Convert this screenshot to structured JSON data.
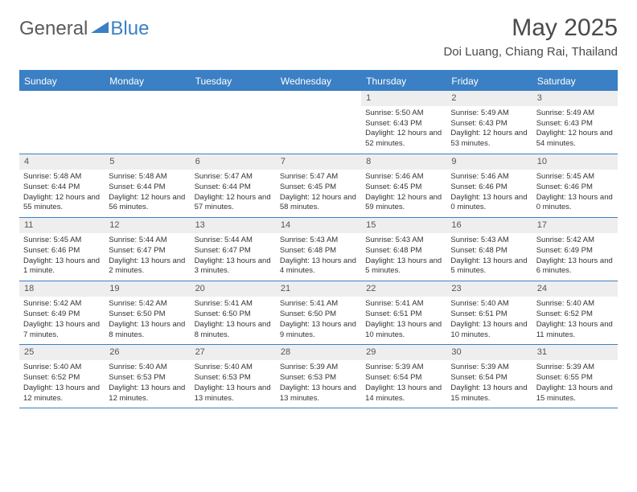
{
  "brand": {
    "part1": "General",
    "part2": "Blue"
  },
  "title": "May 2025",
  "location": "Doi Luang, Chiang Rai, Thailand",
  "colors": {
    "accent": "#3b7fc4",
    "header_bg": "#3b7fc4",
    "header_text": "#ffffff",
    "daynum_bg": "#eeeeee",
    "text": "#333333",
    "page_bg": "#ffffff"
  },
  "weekdays": [
    "Sunday",
    "Monday",
    "Tuesday",
    "Wednesday",
    "Thursday",
    "Friday",
    "Saturday"
  ],
  "weeks": [
    [
      {
        "empty": true
      },
      {
        "empty": true
      },
      {
        "empty": true
      },
      {
        "empty": true
      },
      {
        "n": "1",
        "sunrise": "Sunrise: 5:50 AM",
        "sunset": "Sunset: 6:43 PM",
        "daylight": "Daylight: 12 hours and 52 minutes."
      },
      {
        "n": "2",
        "sunrise": "Sunrise: 5:49 AM",
        "sunset": "Sunset: 6:43 PM",
        "daylight": "Daylight: 12 hours and 53 minutes."
      },
      {
        "n": "3",
        "sunrise": "Sunrise: 5:49 AM",
        "sunset": "Sunset: 6:43 PM",
        "daylight": "Daylight: 12 hours and 54 minutes."
      }
    ],
    [
      {
        "n": "4",
        "sunrise": "Sunrise: 5:48 AM",
        "sunset": "Sunset: 6:44 PM",
        "daylight": "Daylight: 12 hours and 55 minutes."
      },
      {
        "n": "5",
        "sunrise": "Sunrise: 5:48 AM",
        "sunset": "Sunset: 6:44 PM",
        "daylight": "Daylight: 12 hours and 56 minutes."
      },
      {
        "n": "6",
        "sunrise": "Sunrise: 5:47 AM",
        "sunset": "Sunset: 6:44 PM",
        "daylight": "Daylight: 12 hours and 57 minutes."
      },
      {
        "n": "7",
        "sunrise": "Sunrise: 5:47 AM",
        "sunset": "Sunset: 6:45 PM",
        "daylight": "Daylight: 12 hours and 58 minutes."
      },
      {
        "n": "8",
        "sunrise": "Sunrise: 5:46 AM",
        "sunset": "Sunset: 6:45 PM",
        "daylight": "Daylight: 12 hours and 59 minutes."
      },
      {
        "n": "9",
        "sunrise": "Sunrise: 5:46 AM",
        "sunset": "Sunset: 6:46 PM",
        "daylight": "Daylight: 13 hours and 0 minutes."
      },
      {
        "n": "10",
        "sunrise": "Sunrise: 5:45 AM",
        "sunset": "Sunset: 6:46 PM",
        "daylight": "Daylight: 13 hours and 0 minutes."
      }
    ],
    [
      {
        "n": "11",
        "sunrise": "Sunrise: 5:45 AM",
        "sunset": "Sunset: 6:46 PM",
        "daylight": "Daylight: 13 hours and 1 minute."
      },
      {
        "n": "12",
        "sunrise": "Sunrise: 5:44 AM",
        "sunset": "Sunset: 6:47 PM",
        "daylight": "Daylight: 13 hours and 2 minutes."
      },
      {
        "n": "13",
        "sunrise": "Sunrise: 5:44 AM",
        "sunset": "Sunset: 6:47 PM",
        "daylight": "Daylight: 13 hours and 3 minutes."
      },
      {
        "n": "14",
        "sunrise": "Sunrise: 5:43 AM",
        "sunset": "Sunset: 6:48 PM",
        "daylight": "Daylight: 13 hours and 4 minutes."
      },
      {
        "n": "15",
        "sunrise": "Sunrise: 5:43 AM",
        "sunset": "Sunset: 6:48 PM",
        "daylight": "Daylight: 13 hours and 5 minutes."
      },
      {
        "n": "16",
        "sunrise": "Sunrise: 5:43 AM",
        "sunset": "Sunset: 6:48 PM",
        "daylight": "Daylight: 13 hours and 5 minutes."
      },
      {
        "n": "17",
        "sunrise": "Sunrise: 5:42 AM",
        "sunset": "Sunset: 6:49 PM",
        "daylight": "Daylight: 13 hours and 6 minutes."
      }
    ],
    [
      {
        "n": "18",
        "sunrise": "Sunrise: 5:42 AM",
        "sunset": "Sunset: 6:49 PM",
        "daylight": "Daylight: 13 hours and 7 minutes."
      },
      {
        "n": "19",
        "sunrise": "Sunrise: 5:42 AM",
        "sunset": "Sunset: 6:50 PM",
        "daylight": "Daylight: 13 hours and 8 minutes."
      },
      {
        "n": "20",
        "sunrise": "Sunrise: 5:41 AM",
        "sunset": "Sunset: 6:50 PM",
        "daylight": "Daylight: 13 hours and 8 minutes."
      },
      {
        "n": "21",
        "sunrise": "Sunrise: 5:41 AM",
        "sunset": "Sunset: 6:50 PM",
        "daylight": "Daylight: 13 hours and 9 minutes."
      },
      {
        "n": "22",
        "sunrise": "Sunrise: 5:41 AM",
        "sunset": "Sunset: 6:51 PM",
        "daylight": "Daylight: 13 hours and 10 minutes."
      },
      {
        "n": "23",
        "sunrise": "Sunrise: 5:40 AM",
        "sunset": "Sunset: 6:51 PM",
        "daylight": "Daylight: 13 hours and 10 minutes."
      },
      {
        "n": "24",
        "sunrise": "Sunrise: 5:40 AM",
        "sunset": "Sunset: 6:52 PM",
        "daylight": "Daylight: 13 hours and 11 minutes."
      }
    ],
    [
      {
        "n": "25",
        "sunrise": "Sunrise: 5:40 AM",
        "sunset": "Sunset: 6:52 PM",
        "daylight": "Daylight: 13 hours and 12 minutes."
      },
      {
        "n": "26",
        "sunrise": "Sunrise: 5:40 AM",
        "sunset": "Sunset: 6:53 PM",
        "daylight": "Daylight: 13 hours and 12 minutes."
      },
      {
        "n": "27",
        "sunrise": "Sunrise: 5:40 AM",
        "sunset": "Sunset: 6:53 PM",
        "daylight": "Daylight: 13 hours and 13 minutes."
      },
      {
        "n": "28",
        "sunrise": "Sunrise: 5:39 AM",
        "sunset": "Sunset: 6:53 PM",
        "daylight": "Daylight: 13 hours and 13 minutes."
      },
      {
        "n": "29",
        "sunrise": "Sunrise: 5:39 AM",
        "sunset": "Sunset: 6:54 PM",
        "daylight": "Daylight: 13 hours and 14 minutes."
      },
      {
        "n": "30",
        "sunrise": "Sunrise: 5:39 AM",
        "sunset": "Sunset: 6:54 PM",
        "daylight": "Daylight: 13 hours and 15 minutes."
      },
      {
        "n": "31",
        "sunrise": "Sunrise: 5:39 AM",
        "sunset": "Sunset: 6:55 PM",
        "daylight": "Daylight: 13 hours and 15 minutes."
      }
    ]
  ]
}
